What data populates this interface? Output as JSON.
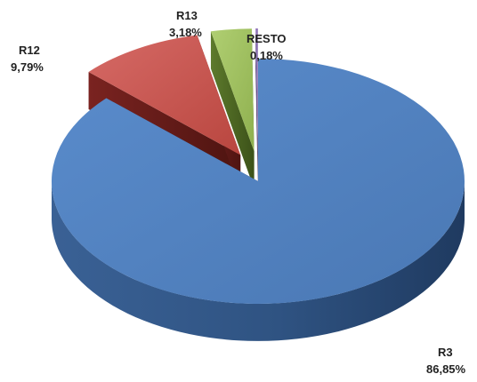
{
  "chart_data": {
    "type": "pie",
    "style": "3d-exploded",
    "title": "",
    "slices": [
      {
        "label": "R3",
        "value": 86.85,
        "display": "86,85%",
        "color": "#4f81bd",
        "exploded": false
      },
      {
        "label": "R12",
        "value": 9.79,
        "display": "9,79%",
        "color": "#c0504d",
        "exploded": true
      },
      {
        "label": "R13",
        "value": 3.18,
        "display": "3,18%",
        "color": "#9bbb59",
        "exploded": true
      },
      {
        "label": "RESTO",
        "value": 0.18,
        "display": "0,18%",
        "color": "#8064a2",
        "exploded": true
      }
    ]
  }
}
